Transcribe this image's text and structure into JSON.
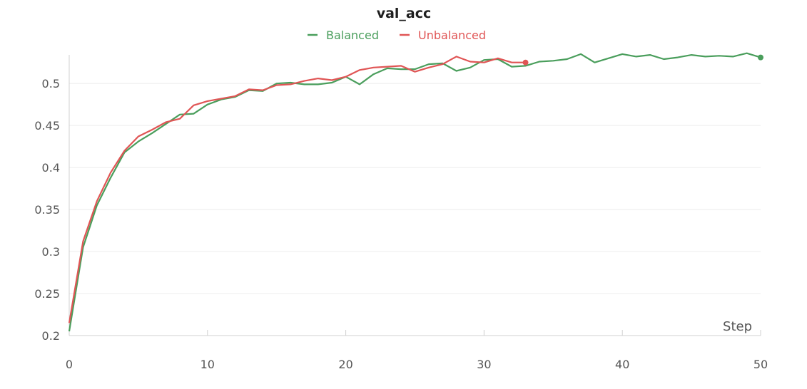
{
  "chart_data": {
    "type": "line",
    "title": "val_acc",
    "xlabel": "Step",
    "ylabel": "",
    "xlim": [
      0,
      50
    ],
    "ylim": [
      0.2,
      0.54
    ],
    "xticks": [
      0,
      10,
      20,
      30,
      40,
      50
    ],
    "yticks": [
      0.2,
      0.25,
      0.3,
      0.35,
      0.4,
      0.45,
      0.5
    ],
    "ytick_labels": [
      "0.2",
      "0.25",
      "0.3",
      "0.35",
      "0.4",
      "0.45",
      "0.5"
    ],
    "xtick_labels": [
      "0",
      "10",
      "20",
      "30",
      "40",
      "50"
    ],
    "grid": true,
    "legend_position": "top-center",
    "series": [
      {
        "name": "Balanced",
        "color": "#4a9e5c",
        "x": [
          0,
          1,
          2,
          3,
          4,
          5,
          6,
          7,
          8,
          9,
          10,
          11,
          12,
          13,
          14,
          15,
          16,
          17,
          18,
          19,
          20,
          21,
          22,
          23,
          24,
          25,
          26,
          27,
          28,
          29,
          30,
          31,
          32,
          33,
          34,
          35,
          36,
          37,
          38,
          39,
          40,
          41,
          42,
          43,
          44,
          45,
          46,
          47,
          48,
          49,
          50
        ],
        "values": [
          0.205,
          0.305,
          0.355,
          0.388,
          0.418,
          0.431,
          0.441,
          0.452,
          0.463,
          0.464,
          0.475,
          0.481,
          0.484,
          0.492,
          0.491,
          0.5,
          0.501,
          0.499,
          0.499,
          0.501,
          0.508,
          0.499,
          0.511,
          0.518,
          0.517,
          0.517,
          0.523,
          0.524,
          0.515,
          0.519,
          0.528,
          0.529,
          0.52,
          0.521,
          0.526,
          0.527,
          0.529,
          0.535,
          0.525,
          0.53,
          0.535,
          0.532,
          0.534,
          0.529,
          0.531,
          0.534,
          0.532,
          0.533,
          0.532,
          0.536,
          0.531
        ]
      },
      {
        "name": "Unbalanced",
        "color": "#e05555",
        "x": [
          0,
          1,
          2,
          3,
          4,
          5,
          6,
          7,
          8,
          9,
          10,
          11,
          12,
          13,
          14,
          15,
          16,
          17,
          18,
          19,
          20,
          21,
          22,
          23,
          24,
          25,
          26,
          27,
          28,
          29,
          30,
          31,
          32,
          33
        ],
        "values": [
          0.215,
          0.312,
          0.36,
          0.394,
          0.42,
          0.437,
          0.445,
          0.454,
          0.458,
          0.474,
          0.479,
          0.482,
          0.485,
          0.493,
          0.492,
          0.498,
          0.499,
          0.503,
          0.506,
          0.504,
          0.508,
          0.516,
          0.519,
          0.52,
          0.521,
          0.514,
          0.519,
          0.523,
          0.532,
          0.526,
          0.525,
          0.53,
          0.525,
          0.525
        ]
      }
    ]
  }
}
